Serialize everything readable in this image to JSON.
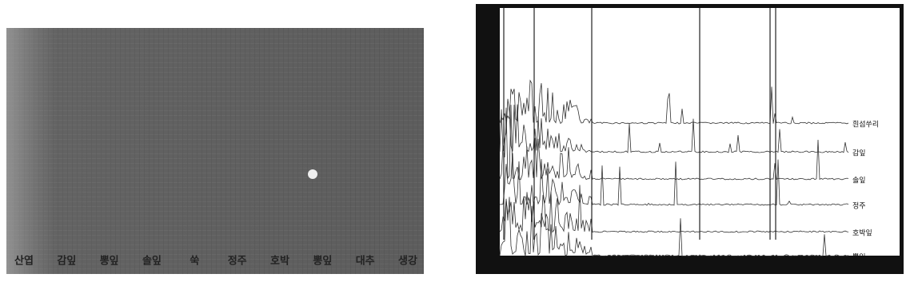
{
  "tlc": {
    "lane_labels": [
      "산엽",
      "감잎",
      "뽕잎",
      "솔잎",
      "쑥",
      "정주",
      "호박",
      "뽕잎",
      "대추",
      "생강"
    ]
  },
  "chromatogram": {
    "trace_labels": [
      "흰섬쑤리",
      "감잎",
      "솔잎",
      "정주",
      "호박잎",
      "뽕잎"
    ]
  }
}
